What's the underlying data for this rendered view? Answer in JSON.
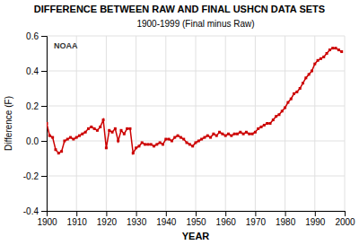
{
  "chart_data": {
    "type": "line",
    "title": "DIFFERENCE BETWEEN RAW AND FINAL USHCN DATA SETS",
    "subtitle": "1900-1999 (Final minus Raw)",
    "xlabel": "YEAR",
    "ylabel": "Difference (F)",
    "x": [
      1900,
      1901,
      1902,
      1903,
      1904,
      1905,
      1906,
      1907,
      1908,
      1909,
      1910,
      1911,
      1912,
      1913,
      1914,
      1915,
      1916,
      1917,
      1918,
      1919,
      1920,
      1921,
      1922,
      1923,
      1924,
      1925,
      1926,
      1927,
      1928,
      1929,
      1930,
      1931,
      1932,
      1933,
      1934,
      1935,
      1936,
      1937,
      1938,
      1939,
      1940,
      1941,
      1942,
      1943,
      1944,
      1945,
      1946,
      1947,
      1948,
      1949,
      1950,
      1951,
      1952,
      1953,
      1954,
      1955,
      1956,
      1957,
      1958,
      1959,
      1960,
      1961,
      1962,
      1963,
      1964,
      1965,
      1966,
      1967,
      1968,
      1969,
      1970,
      1971,
      1972,
      1973,
      1974,
      1975,
      1976,
      1977,
      1978,
      1979,
      1980,
      1981,
      1982,
      1983,
      1984,
      1985,
      1986,
      1987,
      1988,
      1989,
      1990,
      1991,
      1992,
      1993,
      1994,
      1995,
      1996,
      1997,
      1998,
      1999
    ],
    "values": [
      0.1,
      0.03,
      0.02,
      -0.05,
      -0.07,
      -0.06,
      0.0,
      0.01,
      0.02,
      0.01,
      0.02,
      0.03,
      0.04,
      0.05,
      0.07,
      0.08,
      0.07,
      0.06,
      0.08,
      0.12,
      -0.04,
      0.06,
      0.05,
      0.07,
      0.0,
      0.06,
      0.04,
      0.07,
      0.07,
      -0.07,
      -0.04,
      -0.03,
      -0.01,
      -0.02,
      -0.02,
      -0.02,
      -0.03,
      -0.02,
      -0.01,
      -0.02,
      0.01,
      0.01,
      0.0,
      0.02,
      0.03,
      0.02,
      0.01,
      -0.01,
      -0.02,
      -0.03,
      -0.01,
      0.0,
      0.01,
      0.02,
      0.03,
      0.02,
      0.04,
      0.03,
      0.05,
      0.04,
      0.03,
      0.04,
      0.03,
      0.04,
      0.04,
      0.05,
      0.04,
      0.05,
      0.04,
      0.04,
      0.05,
      0.07,
      0.08,
      0.09,
      0.1,
      0.1,
      0.12,
      0.14,
      0.15,
      0.17,
      0.19,
      0.22,
      0.24,
      0.27,
      0.28,
      0.3,
      0.33,
      0.36,
      0.38,
      0.4,
      0.44,
      0.46,
      0.47,
      0.48,
      0.5,
      0.52,
      0.53,
      0.53,
      0.52,
      0.51
    ],
    "color": "#cc0000",
    "marker": "square",
    "line_style": "solid",
    "xlim": [
      1900,
      2000
    ],
    "ylim": [
      -0.4,
      0.6
    ],
    "xticks": [
      1900,
      1910,
      1920,
      1930,
      1940,
      1950,
      1960,
      1970,
      1980,
      1990,
      2000
    ],
    "yticks": [
      -0.4,
      -0.2,
      {
        "value": 0.0,
        "label": "0.0"
      },
      0.2,
      0.4,
      0.6
    ],
    "grid": true,
    "annotations": [
      "NOAA"
    ]
  }
}
